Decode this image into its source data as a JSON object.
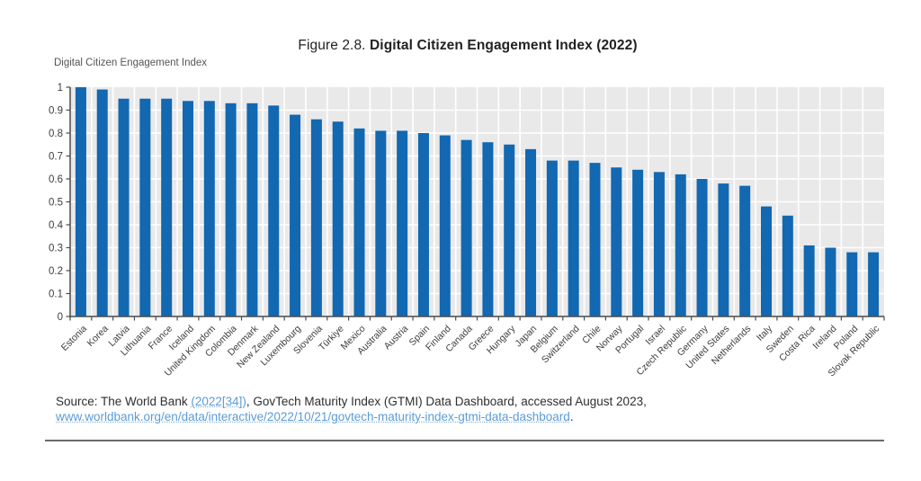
{
  "figure": {
    "title_prefix": "Figure 2.8. ",
    "title_bold": "Digital Citizen Engagement Index (2022)",
    "axis_title": "Digital Citizen Engagement Index"
  },
  "source": {
    "prefix": "Source: The World Bank ",
    "citation_link": "(2022[34])",
    "middle": ", GovTech Maturity Index (GTMI) Data Dashboard, accessed August 2023,",
    "url_link": "www.worldbank.org/en/data/interactive/2022/10/21/govtech-maturity-index-gtmi-data-dashboard",
    "terminator": "."
  },
  "colors": {
    "bar": "#1268b1",
    "plot_bg": "#e9e9e9",
    "gridline": "#ffffff",
    "axis": "#4a4a4a",
    "tick_label": "#3d3d3d",
    "link": "#5b9bd5"
  },
  "chart_data": {
    "type": "bar",
    "title": "Figure 2.8. Digital Citizen Engagement Index (2022)",
    "xlabel": "",
    "ylabel": "Digital Citizen Engagement Index",
    "ylim": [
      0,
      1
    ],
    "ytick_interval": 0.1,
    "grid": true,
    "legend": "none",
    "categories": [
      "Estonia",
      "Korea",
      "Latvia",
      "Lithuania",
      "France",
      "Iceland",
      "United Kingdom",
      "Colombia",
      "Denmark",
      "New Zealand",
      "Luxembourg",
      "Slovenia",
      "Türkiye",
      "Mexico",
      "Australia",
      "Austria",
      "Spain",
      "Finland",
      "Canada",
      "Greece",
      "Hungary",
      "Japan",
      "Belgium",
      "Switzerland",
      "Chile",
      "Norway",
      "Portugal",
      "Israel",
      "Czech Republic",
      "Germany",
      "United States",
      "Netherlands",
      "Italy",
      "Sweden",
      "Costa Rica",
      "Ireland",
      "Poland",
      "Slovak Republic"
    ],
    "values": [
      1.0,
      0.99,
      0.95,
      0.95,
      0.95,
      0.94,
      0.94,
      0.93,
      0.93,
      0.92,
      0.88,
      0.86,
      0.85,
      0.82,
      0.81,
      0.81,
      0.8,
      0.79,
      0.77,
      0.76,
      0.75,
      0.73,
      0.68,
      0.68,
      0.67,
      0.65,
      0.64,
      0.63,
      0.62,
      0.6,
      0.58,
      0.57,
      0.48,
      0.44,
      0.31,
      0.3,
      0.28,
      0.28
    ]
  }
}
